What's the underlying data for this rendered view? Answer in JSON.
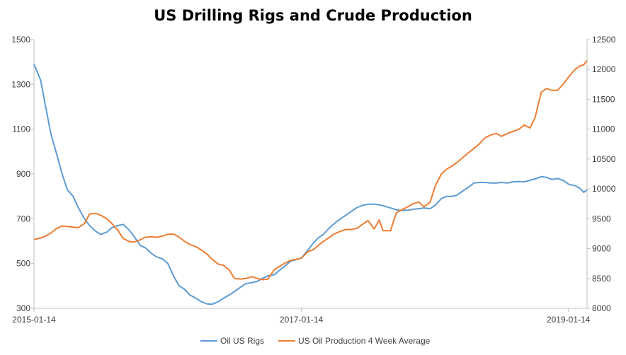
{
  "chart_data": {
    "type": "line",
    "title": "US Drilling Rigs and Crude Production",
    "x_start": "2015-01-14",
    "x_end": "2019-03-06",
    "x_tick_labels": [
      "2015-01-14",
      "2017-01-14",
      "2019-01-14"
    ],
    "y_left": {
      "min": 300,
      "max": 1500,
      "ticks": [
        300,
        500,
        700,
        900,
        1100,
        1300,
        1500
      ]
    },
    "y_right": {
      "min": 8000,
      "max": 12500,
      "ticks": [
        8000,
        8500,
        9000,
        9500,
        10000,
        10500,
        11000,
        11500,
        12000,
        12500
      ]
    },
    "legend_position": "bottom",
    "series": [
      {
        "name": "Oil US Rigs",
        "axis": "left",
        "color": "#5B9BD5",
        "points": [
          [
            "2015-01-14",
            1390
          ],
          [
            "2015-02-01",
            1320
          ],
          [
            "2015-02-15",
            1200
          ],
          [
            "2015-03-01",
            1080
          ],
          [
            "2015-03-15",
            1000
          ],
          [
            "2015-04-01",
            900
          ],
          [
            "2015-04-15",
            830
          ],
          [
            "2015-05-01",
            800
          ],
          [
            "2015-05-15",
            750
          ],
          [
            "2015-06-01",
            700
          ],
          [
            "2015-06-15",
            670
          ],
          [
            "2015-07-01",
            645
          ],
          [
            "2015-07-15",
            630
          ],
          [
            "2015-08-01",
            640
          ],
          [
            "2015-08-15",
            660
          ],
          [
            "2015-09-01",
            670
          ],
          [
            "2015-09-15",
            675
          ],
          [
            "2015-10-01",
            650
          ],
          [
            "2015-10-15",
            620
          ],
          [
            "2015-11-01",
            580
          ],
          [
            "2015-11-15",
            570
          ],
          [
            "2015-12-01",
            545
          ],
          [
            "2015-12-15",
            530
          ],
          [
            "2016-01-01",
            520
          ],
          [
            "2016-01-15",
            500
          ],
          [
            "2016-02-01",
            440
          ],
          [
            "2016-02-15",
            400
          ],
          [
            "2016-03-01",
            385
          ],
          [
            "2016-03-15",
            360
          ],
          [
            "2016-04-01",
            345
          ],
          [
            "2016-04-15",
            330
          ],
          [
            "2016-05-01",
            320
          ],
          [
            "2016-05-15",
            318
          ],
          [
            "2016-06-01",
            330
          ],
          [
            "2016-06-15",
            345
          ],
          [
            "2016-07-01",
            360
          ],
          [
            "2016-07-15",
            375
          ],
          [
            "2016-08-01",
            395
          ],
          [
            "2016-08-15",
            410
          ],
          [
            "2016-09-01",
            415
          ],
          [
            "2016-09-15",
            420
          ],
          [
            "2016-10-01",
            435
          ],
          [
            "2016-10-15",
            445
          ],
          [
            "2016-11-01",
            450
          ],
          [
            "2016-11-15",
            470
          ],
          [
            "2016-12-01",
            490
          ],
          [
            "2016-12-15",
            510
          ],
          [
            "2017-01-14",
            525
          ],
          [
            "2017-02-01",
            560
          ],
          [
            "2017-02-15",
            590
          ],
          [
            "2017-03-01",
            615
          ],
          [
            "2017-03-15",
            630
          ],
          [
            "2017-04-01",
            660
          ],
          [
            "2017-04-15",
            680
          ],
          [
            "2017-05-01",
            700
          ],
          [
            "2017-05-15",
            715
          ],
          [
            "2017-06-01",
            735
          ],
          [
            "2017-06-15",
            750
          ],
          [
            "2017-07-01",
            760
          ],
          [
            "2017-07-15",
            765
          ],
          [
            "2017-08-01",
            765
          ],
          [
            "2017-08-15",
            762
          ],
          [
            "2017-09-01",
            755
          ],
          [
            "2017-09-15",
            748
          ],
          [
            "2017-10-01",
            740
          ],
          [
            "2017-10-15",
            737
          ],
          [
            "2017-11-01",
            738
          ],
          [
            "2017-11-15",
            742
          ],
          [
            "2017-12-01",
            745
          ],
          [
            "2017-12-15",
            748
          ],
          [
            "2018-01-01",
            745
          ],
          [
            "2018-01-15",
            760
          ],
          [
            "2018-02-01",
            790
          ],
          [
            "2018-02-15",
            800
          ],
          [
            "2018-03-01",
            800
          ],
          [
            "2018-03-15",
            805
          ],
          [
            "2018-04-01",
            825
          ],
          [
            "2018-04-15",
            840
          ],
          [
            "2018-05-01",
            860
          ],
          [
            "2018-05-15",
            862
          ],
          [
            "2018-06-01",
            862
          ],
          [
            "2018-06-15",
            860
          ],
          [
            "2018-07-01",
            860
          ],
          [
            "2018-07-15",
            862
          ],
          [
            "2018-08-01",
            860
          ],
          [
            "2018-08-15",
            865
          ],
          [
            "2018-09-01",
            866
          ],
          [
            "2018-09-15",
            865
          ],
          [
            "2018-10-01",
            872
          ],
          [
            "2018-10-15",
            878
          ],
          [
            "2018-11-01",
            888
          ],
          [
            "2018-11-15",
            885
          ],
          [
            "2018-12-01",
            875
          ],
          [
            "2018-12-15",
            880
          ],
          [
            "2019-01-01",
            870
          ],
          [
            "2019-01-14",
            855
          ],
          [
            "2019-01-25",
            850
          ],
          [
            "2019-02-01",
            848
          ],
          [
            "2019-02-15",
            835
          ],
          [
            "2019-02-25",
            818
          ],
          [
            "2019-03-06",
            830
          ]
        ]
      },
      {
        "name": "US Oil Production 4 Week Average",
        "axis": "right",
        "color": "#ED7D31",
        "points": [
          [
            "2015-01-14",
            9150
          ],
          [
            "2015-02-01",
            9180
          ],
          [
            "2015-02-15",
            9210
          ],
          [
            "2015-03-01",
            9260
          ],
          [
            "2015-03-15",
            9330
          ],
          [
            "2015-04-01",
            9380
          ],
          [
            "2015-04-15",
            9370
          ],
          [
            "2015-05-01",
            9360
          ],
          [
            "2015-05-15",
            9350
          ],
          [
            "2015-06-01",
            9420
          ],
          [
            "2015-06-15",
            9580
          ],
          [
            "2015-07-01",
            9590
          ],
          [
            "2015-07-15",
            9560
          ],
          [
            "2015-08-01",
            9500
          ],
          [
            "2015-08-15",
            9420
          ],
          [
            "2015-09-01",
            9300
          ],
          [
            "2015-09-15",
            9170
          ],
          [
            "2015-10-01",
            9120
          ],
          [
            "2015-10-15",
            9110
          ],
          [
            "2015-11-01",
            9150
          ],
          [
            "2015-11-15",
            9190
          ],
          [
            "2015-12-01",
            9200
          ],
          [
            "2015-12-15",
            9190
          ],
          [
            "2016-01-01",
            9210
          ],
          [
            "2016-01-15",
            9240
          ],
          [
            "2016-02-01",
            9240
          ],
          [
            "2016-02-15",
            9190
          ],
          [
            "2016-03-01",
            9120
          ],
          [
            "2016-03-15",
            9070
          ],
          [
            "2016-04-01",
            9030
          ],
          [
            "2016-04-15",
            8980
          ],
          [
            "2016-05-01",
            8910
          ],
          [
            "2016-05-15",
            8820
          ],
          [
            "2016-06-01",
            8740
          ],
          [
            "2016-06-15",
            8720
          ],
          [
            "2016-07-01",
            8640
          ],
          [
            "2016-07-15",
            8500
          ],
          [
            "2016-08-01",
            8490
          ],
          [
            "2016-08-15",
            8500
          ],
          [
            "2016-09-01",
            8530
          ],
          [
            "2016-09-15",
            8500
          ],
          [
            "2016-10-01",
            8480
          ],
          [
            "2016-10-15",
            8490
          ],
          [
            "2016-11-01",
            8650
          ],
          [
            "2016-11-15",
            8700
          ],
          [
            "2016-12-01",
            8760
          ],
          [
            "2016-12-15",
            8800
          ],
          [
            "2017-01-14",
            8840
          ],
          [
            "2017-02-01",
            8950
          ],
          [
            "2017-02-15",
            8980
          ],
          [
            "2017-03-01",
            9050
          ],
          [
            "2017-03-15",
            9120
          ],
          [
            "2017-04-01",
            9190
          ],
          [
            "2017-04-15",
            9250
          ],
          [
            "2017-05-01",
            9290
          ],
          [
            "2017-05-15",
            9320
          ],
          [
            "2017-06-01",
            9320
          ],
          [
            "2017-06-15",
            9340
          ],
          [
            "2017-07-01",
            9410
          ],
          [
            "2017-07-15",
            9470
          ],
          [
            "2017-08-01",
            9330
          ],
          [
            "2017-08-15",
            9480
          ],
          [
            "2017-08-25",
            9300
          ],
          [
            "2017-09-15",
            9300
          ],
          [
            "2017-09-25",
            9500
          ],
          [
            "2017-10-01",
            9600
          ],
          [
            "2017-10-15",
            9650
          ],
          [
            "2017-11-01",
            9700
          ],
          [
            "2017-11-15",
            9750
          ],
          [
            "2017-12-01",
            9780
          ],
          [
            "2017-12-15",
            9700
          ],
          [
            "2018-01-01",
            9780
          ],
          [
            "2018-01-15",
            10050
          ],
          [
            "2018-02-01",
            10250
          ],
          [
            "2018-02-15",
            10330
          ],
          [
            "2018-03-01",
            10380
          ],
          [
            "2018-03-15",
            10440
          ],
          [
            "2018-04-01",
            10530
          ],
          [
            "2018-04-15",
            10600
          ],
          [
            "2018-05-01",
            10680
          ],
          [
            "2018-05-15",
            10750
          ],
          [
            "2018-06-01",
            10860
          ],
          [
            "2018-06-15",
            10900
          ],
          [
            "2018-07-01",
            10930
          ],
          [
            "2018-07-15",
            10880
          ],
          [
            "2018-08-01",
            10930
          ],
          [
            "2018-08-15",
            10960
          ],
          [
            "2018-09-01",
            11000
          ],
          [
            "2018-09-15",
            11070
          ],
          [
            "2018-10-01",
            11020
          ],
          [
            "2018-10-15",
            11200
          ],
          [
            "2018-11-01",
            11620
          ],
          [
            "2018-11-15",
            11680
          ],
          [
            "2018-12-01",
            11650
          ],
          [
            "2018-12-15",
            11650
          ],
          [
            "2019-01-01",
            11760
          ],
          [
            "2019-01-14",
            11870
          ],
          [
            "2019-01-25",
            11950
          ],
          [
            "2019-02-01",
            12000
          ],
          [
            "2019-02-15",
            12060
          ],
          [
            "2019-02-25",
            12080
          ],
          [
            "2019-03-06",
            12150
          ]
        ]
      }
    ]
  }
}
